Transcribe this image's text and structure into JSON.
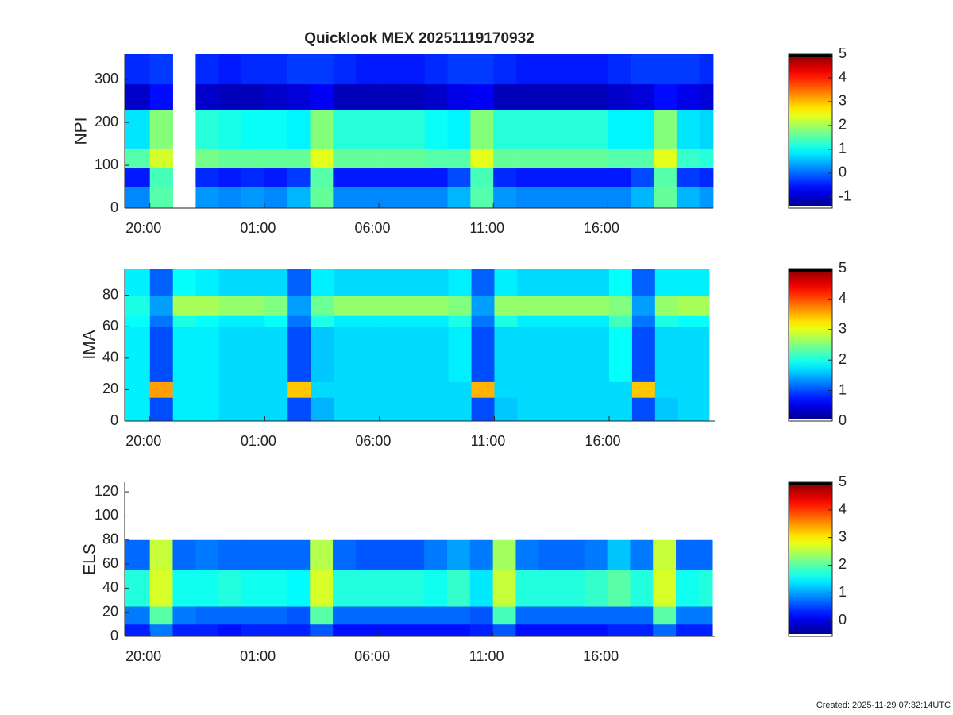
{
  "title": "Quicklook MEX 20251119170932",
  "footer": "Created: 2025-11-29 07:32:14UTC",
  "chart_data": [
    {
      "type": "heatmap",
      "ylabel": "NPI",
      "x_edges": [
        18.9,
        20,
        21,
        22,
        23,
        24,
        25,
        26,
        27,
        28,
        29,
        30,
        31,
        32,
        33,
        34,
        35,
        36,
        37,
        38,
        39,
        40,
        41,
        42,
        43,
        44,
        44.6
      ],
      "y_edges": [
        0,
        50,
        95,
        140,
        230,
        290,
        360
      ],
      "z": [
        [
          0.2,
          1.5,
          null,
          0.3,
          0.2,
          0.3,
          0.2,
          0.5,
          1.6,
          0.2,
          0.2,
          0.2,
          0.2,
          0.2,
          0.5,
          1.5,
          0.3,
          0.2,
          0.2,
          0.2,
          0.2,
          0.2,
          0.5,
          1.6,
          0.5,
          0.3
        ],
        [
          -0.5,
          1.4,
          null,
          -0.4,
          -0.5,
          -0.4,
          -0.5,
          -0.3,
          1.5,
          -0.5,
          -0.5,
          -0.5,
          -0.5,
          -0.5,
          -0.2,
          1.4,
          -0.4,
          -0.5,
          -0.5,
          -0.5,
          -0.5,
          -0.5,
          -0.2,
          1.5,
          -0.3,
          -0.4
        ],
        [
          1.5,
          2.3,
          null,
          1.7,
          1.6,
          1.6,
          1.6,
          1.6,
          2.4,
          1.6,
          1.6,
          1.6,
          1.6,
          1.5,
          1.5,
          2.4,
          1.6,
          1.6,
          1.6,
          1.6,
          1.6,
          1.5,
          1.5,
          2.4,
          1.3,
          1.2
        ],
        [
          0.8,
          1.8,
          null,
          1.2,
          1.1,
          1.0,
          1.0,
          0.9,
          1.8,
          1.2,
          1.2,
          1.2,
          1.2,
          1.0,
          0.9,
          1.8,
          1.2,
          1.2,
          1.2,
          1.2,
          1.2,
          0.9,
          0.9,
          1.8,
          0.8,
          0.7
        ],
        [
          -1.0,
          -0.6,
          null,
          -1.0,
          -1.1,
          -1.1,
          -1.0,
          -0.9,
          -0.7,
          -1.1,
          -1.1,
          -1.1,
          -1.1,
          -1.0,
          -0.8,
          -0.7,
          -1.1,
          -1.1,
          -1.1,
          -1.1,
          -1.1,
          -1.0,
          -0.9,
          -0.6,
          -0.8,
          -0.9
        ],
        [
          -0.4,
          -0.3,
          null,
          -0.4,
          -0.5,
          -0.4,
          -0.4,
          -0.3,
          -0.3,
          -0.4,
          -0.5,
          -0.5,
          -0.5,
          -0.4,
          -0.3,
          -0.3,
          -0.4,
          -0.5,
          -0.5,
          -0.5,
          -0.5,
          -0.4,
          -0.3,
          -0.3,
          -0.3,
          -0.4
        ]
      ],
      "xlim": [
        18.9,
        44.6
      ],
      "xticks": [
        {
          "value": 20,
          "label": "20:00"
        },
        {
          "value": 25,
          "label": "01:00"
        },
        {
          "value": 30,
          "label": "06:00"
        },
        {
          "value": 35,
          "label": "11:00"
        },
        {
          "value": 40,
          "label": "16:00"
        }
      ],
      "ylim": [
        0,
        360
      ],
      "yticks": [
        0,
        100,
        200,
        300
      ],
      "clim": [
        -1.47,
        5
      ],
      "cticks": [
        -1,
        0,
        1,
        2,
        3,
        4,
        5
      ]
    },
    {
      "type": "heatmap",
      "ylabel": "IMA",
      "x_edges": [
        18.9,
        20,
        21,
        22,
        23,
        24,
        25,
        26,
        27,
        28,
        29,
        30,
        31,
        32,
        33,
        34,
        35,
        36,
        37,
        38,
        39,
        40,
        41,
        42,
        43,
        44,
        44.6
      ],
      "y_edges": [
        0,
        15,
        25,
        60,
        67,
        80,
        97
      ],
      "z": [
        [
          1.8,
          1.0,
          1.8,
          1.8,
          1.7,
          1.7,
          1.7,
          1.0,
          1.5,
          1.7,
          1.7,
          1.7,
          1.7,
          1.7,
          1.7,
          1.0,
          1.6,
          1.7,
          1.7,
          1.7,
          1.7,
          1.7,
          1.0,
          1.6,
          1.7,
          1.7
        ],
        [
          1.8,
          3.6,
          1.8,
          1.8,
          1.7,
          1.7,
          1.7,
          3.4,
          1.7,
          1.7,
          1.7,
          1.7,
          1.7,
          1.7,
          1.7,
          3.5,
          1.7,
          1.7,
          1.7,
          1.7,
          1.7,
          1.7,
          3.4,
          1.7,
          1.7,
          1.7
        ],
        [
          1.8,
          1.0,
          1.8,
          1.8,
          1.7,
          1.7,
          1.7,
          1.0,
          1.6,
          1.7,
          1.7,
          1.7,
          1.7,
          1.7,
          1.8,
          1.0,
          1.7,
          1.7,
          1.7,
          1.7,
          1.7,
          1.9,
          1.0,
          1.7,
          1.7,
          1.7
        ],
        [
          1.9,
          1.2,
          2.0,
          1.9,
          1.8,
          1.8,
          1.9,
          1.2,
          2.0,
          1.8,
          1.8,
          1.8,
          1.8,
          1.8,
          2.0,
          1.2,
          2.0,
          1.8,
          1.8,
          1.8,
          1.8,
          2.2,
          1.2,
          2.0,
          1.9,
          1.9
        ],
        [
          2.0,
          1.4,
          2.7,
          2.7,
          2.6,
          2.6,
          2.5,
          1.4,
          2.4,
          2.6,
          2.6,
          2.6,
          2.6,
          2.6,
          2.5,
          1.4,
          2.6,
          2.6,
          2.6,
          2.6,
          2.6,
          2.5,
          1.4,
          2.6,
          2.7,
          2.7
        ],
        [
          1.8,
          1.1,
          1.9,
          1.8,
          1.7,
          1.7,
          1.7,
          1.1,
          1.8,
          1.7,
          1.7,
          1.7,
          1.7,
          1.7,
          1.8,
          1.1,
          1.8,
          1.7,
          1.7,
          1.7,
          1.7,
          1.9,
          1.1,
          1.8,
          1.8,
          1.8
        ]
      ],
      "xlim": [
        18.9,
        44.6
      ],
      "xticks": [
        {
          "value": 20,
          "label": "20:00"
        },
        {
          "value": 25,
          "label": "01:00"
        },
        {
          "value": 30,
          "label": "06:00"
        },
        {
          "value": 35,
          "label": "11:00"
        },
        {
          "value": 40,
          "label": "16:00"
        }
      ],
      "ylim": [
        0,
        97
      ],
      "yticks": [
        0,
        20,
        40,
        60,
        80
      ],
      "clim": [
        0,
        5
      ],
      "cticks": [
        0,
        1,
        2,
        3,
        4,
        5
      ]
    },
    {
      "type": "heatmap",
      "ylabel": "ELS",
      "x_edges": [
        18.9,
        20,
        21,
        22,
        23,
        24,
        25,
        26,
        27,
        28,
        29,
        30,
        31,
        32,
        33,
        34,
        35,
        36,
        37,
        38,
        39,
        40,
        41,
        42,
        43,
        44,
        44.6
      ],
      "y_edges": [
        0,
        10,
        25,
        55,
        80
      ],
      "z": [
        [
          0.3,
          0.8,
          0.3,
          0.3,
          0.2,
          0.3,
          0.3,
          0.3,
          0.6,
          0.2,
          0.2,
          0.2,
          0.2,
          0.2,
          0.2,
          0.3,
          0.6,
          0.2,
          0.2,
          0.2,
          0.2,
          0.3,
          0.3,
          0.7,
          0.3,
          0.3
        ],
        [
          0.8,
          2.0,
          0.8,
          0.7,
          0.7,
          0.7,
          0.7,
          0.6,
          2.0,
          0.7,
          0.7,
          0.7,
          0.7,
          0.7,
          0.7,
          0.6,
          1.9,
          0.7,
          0.7,
          0.7,
          0.7,
          0.7,
          0.7,
          2.0,
          0.8,
          0.8
        ],
        [
          1.7,
          2.7,
          1.6,
          1.6,
          1.7,
          1.6,
          1.6,
          1.5,
          2.7,
          1.7,
          1.7,
          1.7,
          1.7,
          1.6,
          1.8,
          1.4,
          2.6,
          1.7,
          1.7,
          1.7,
          1.8,
          2.0,
          1.7,
          2.7,
          1.6,
          1.7
        ],
        [
          0.7,
          2.6,
          0.7,
          0.8,
          0.7,
          0.7,
          0.7,
          0.7,
          2.5,
          0.7,
          0.6,
          0.6,
          0.6,
          0.8,
          1.0,
          0.8,
          2.4,
          0.8,
          0.7,
          0.7,
          0.8,
          1.2,
          0.8,
          2.6,
          0.7,
          0.7
        ]
      ],
      "xlim": [
        18.9,
        44.7
      ],
      "xticks": [
        {
          "value": 20,
          "label": "20:00"
        },
        {
          "value": 25,
          "label": "01:00"
        },
        {
          "value": 30,
          "label": "06:00"
        },
        {
          "value": 35,
          "label": "11:00"
        },
        {
          "value": 40,
          "label": "16:00"
        }
      ],
      "ylim": [
        0,
        128
      ],
      "yticks": [
        0,
        20,
        40,
        60,
        80,
        100,
        120
      ],
      "clim": [
        -0.57,
        5
      ],
      "cticks": [
        0,
        1,
        2,
        3,
        4,
        5
      ]
    }
  ]
}
